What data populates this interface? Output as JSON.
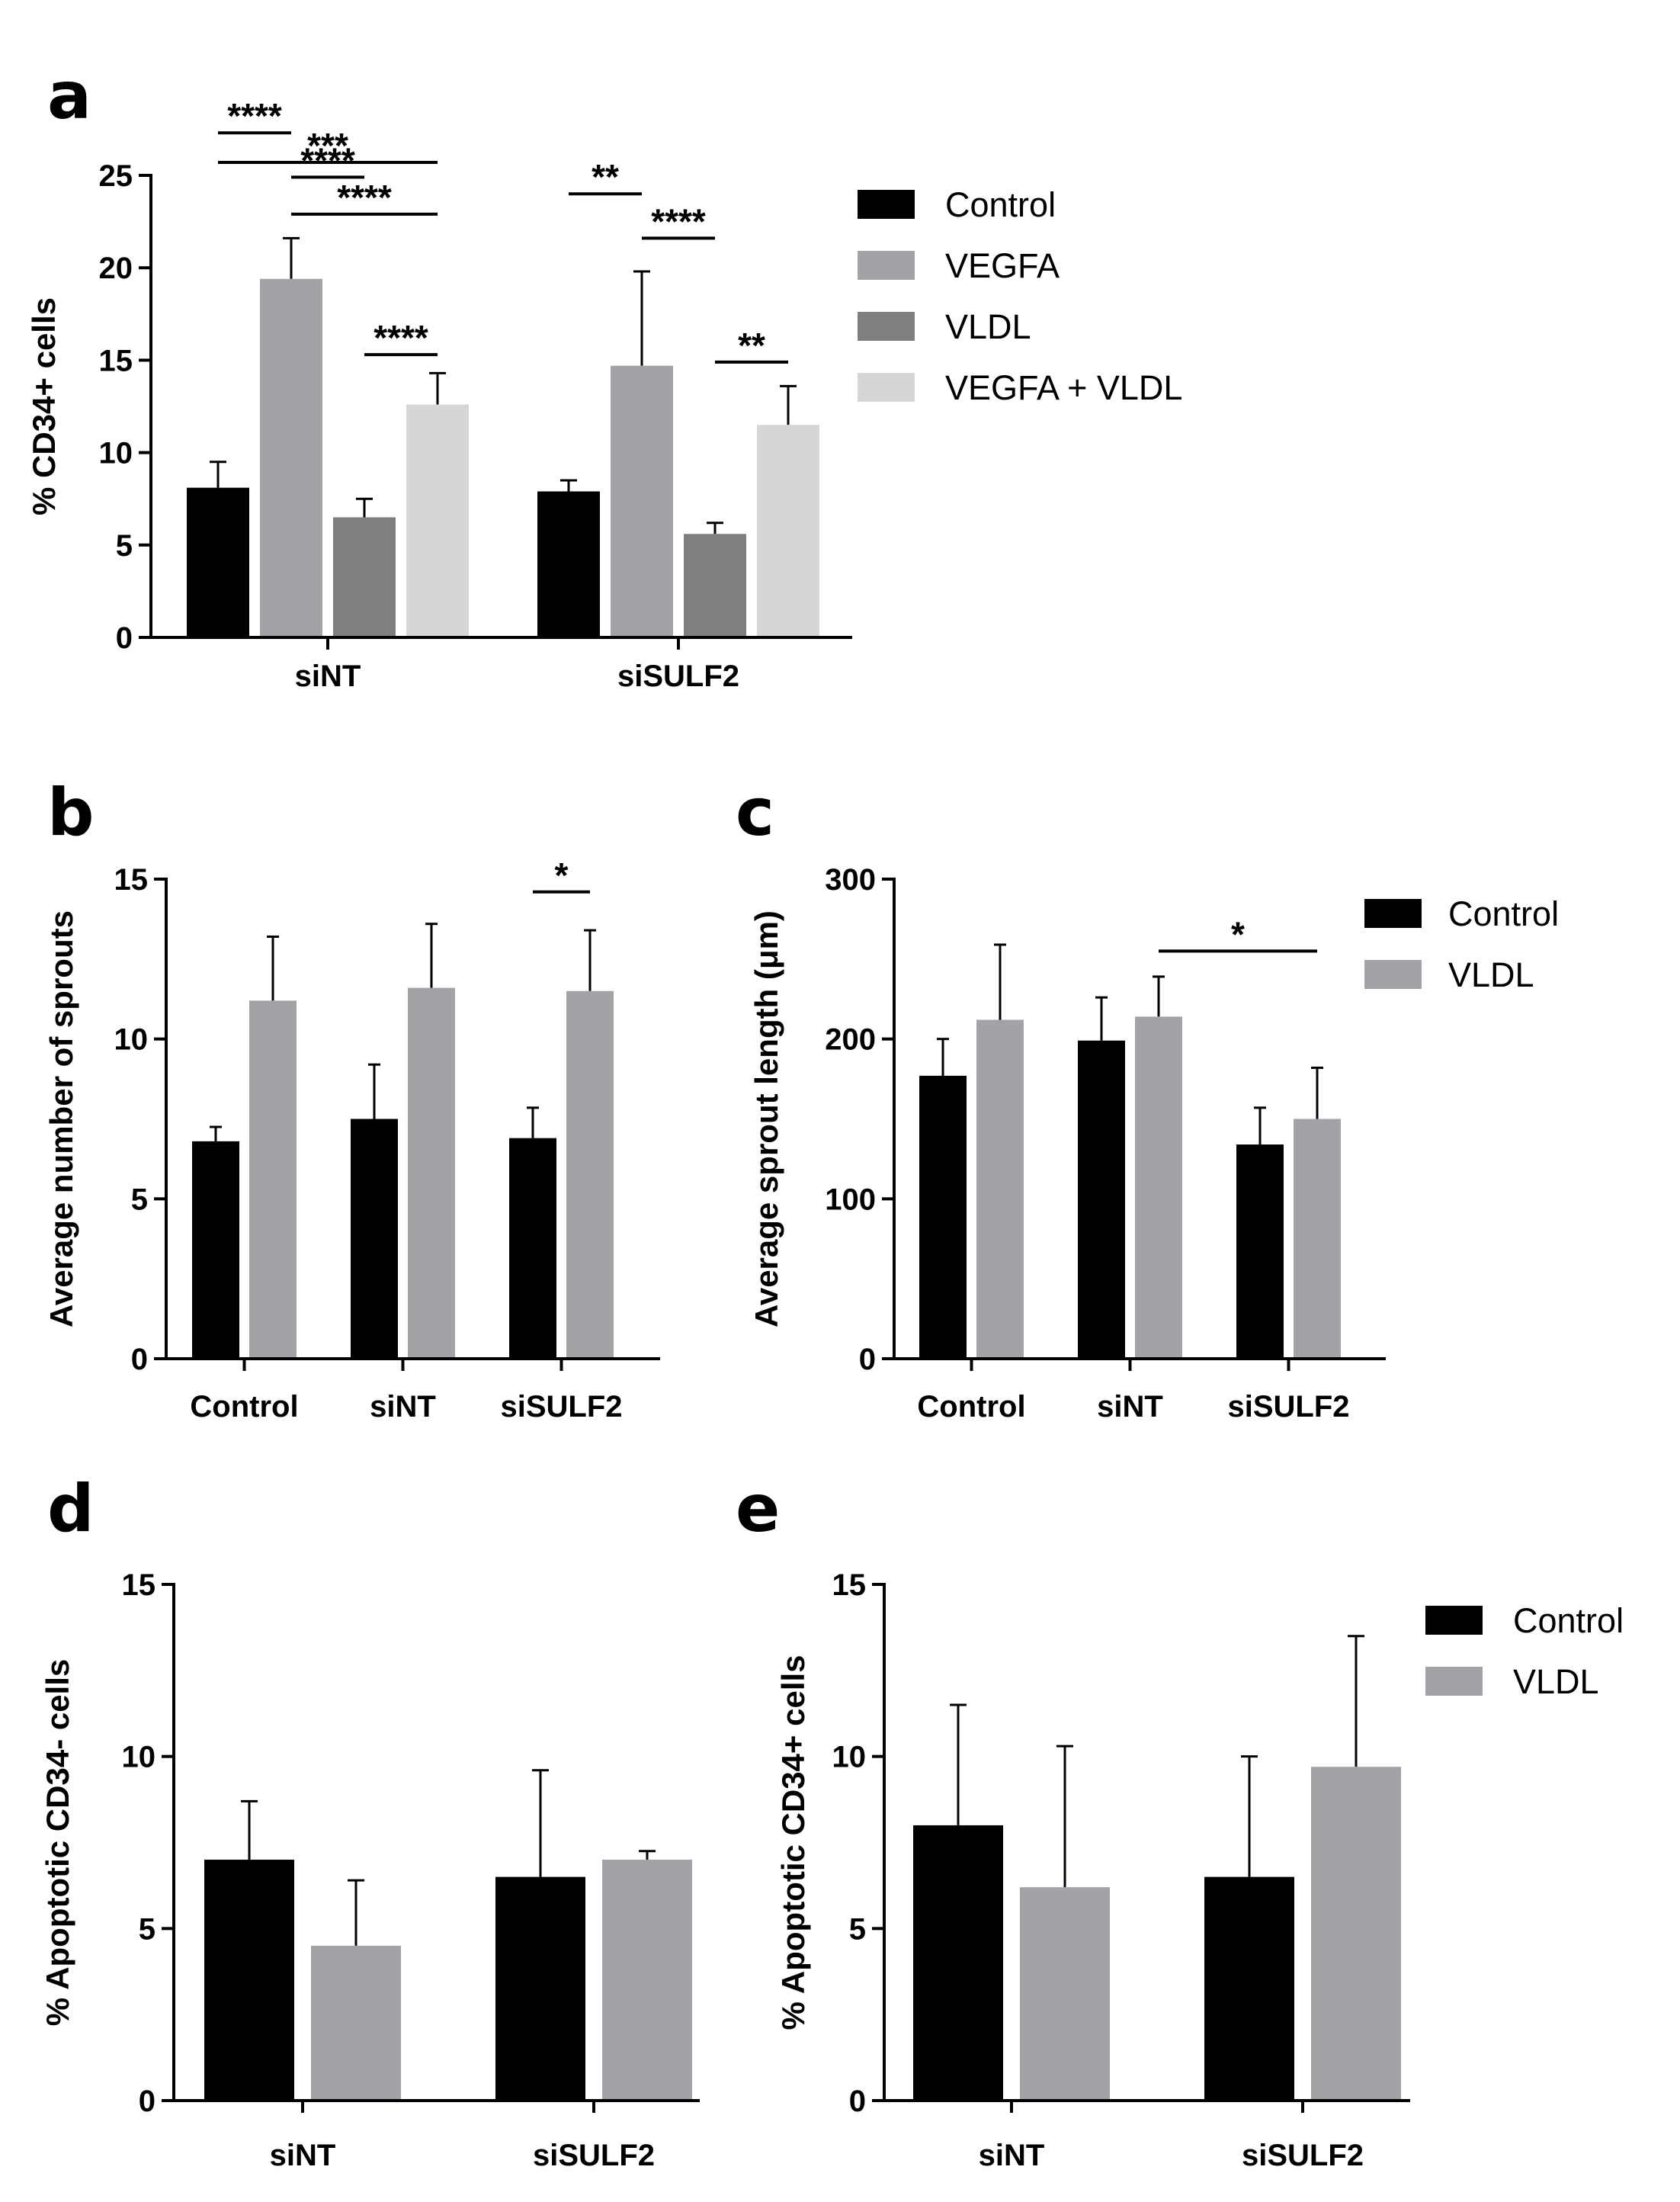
{
  "colors": {
    "control": "#000000",
    "vegfa": "#a3a3a7",
    "vldl": "#7f7f7f",
    "vegfa_vldl": "#d6d6d6",
    "vldl_two_group": "#a3a3a7",
    "axis": "#000000"
  },
  "chart_data": [
    {
      "panel": "a",
      "type": "bar",
      "categories": [
        "siNT",
        "siSULF2"
      ],
      "series": [
        {
          "name": "Control",
          "color_key": "control",
          "values": [
            8.1,
            7.9
          ],
          "errors": [
            1.4,
            0.6
          ]
        },
        {
          "name": "VEGFA",
          "color_key": "vegfa",
          "values": [
            19.4,
            14.7
          ],
          "errors": [
            2.2,
            5.1
          ]
        },
        {
          "name": "VLDL",
          "color_key": "vldl",
          "values": [
            6.5,
            5.6
          ],
          "errors": [
            1.0,
            0.6
          ]
        },
        {
          "name": "VEGFA + VLDL",
          "color_key": "vegfa_vldl",
          "values": [
            12.6,
            11.5
          ],
          "errors": [
            1.7,
            2.1
          ]
        }
      ],
      "ylabel": "% CD34+ cells",
      "ylim": [
        0,
        25
      ],
      "yticks": [
        0,
        5,
        10,
        15,
        20,
        25
      ],
      "legend": {
        "position": "right",
        "labels": [
          "Control",
          "VEGFA",
          "VLDL",
          "VEGFA + VLDL"
        ]
      },
      "significance": [
        {
          "category": 0,
          "from": 0,
          "to": 3,
          "label": "***",
          "level": 25.7
        },
        {
          "category": 0,
          "from": 0,
          "to": 1,
          "label": "****",
          "level": 27.3
        },
        {
          "category": 0,
          "from": 1,
          "to": 2,
          "label": "****",
          "level": 24.9
        },
        {
          "category": 0,
          "from": 1,
          "to": 3,
          "label": "****",
          "level": 22.9
        },
        {
          "category": 0,
          "from": 2,
          "to": 3,
          "label": "****",
          "level": 15.3
        },
        {
          "category": 1,
          "from": 0,
          "to": 1,
          "label": "**",
          "level": 24.0
        },
        {
          "category": 1,
          "from": 1,
          "to": 2,
          "label": "****",
          "level": 21.6
        },
        {
          "category": 1,
          "from": 2,
          "to": 3,
          "label": "**",
          "level": 14.9
        }
      ]
    },
    {
      "panel": "b",
      "type": "bar",
      "categories": [
        "Control",
        "siNT",
        "siSULF2"
      ],
      "series": [
        {
          "name": "Control",
          "color_key": "control",
          "values": [
            6.8,
            7.5,
            6.9
          ],
          "errors": [
            0.45,
            1.7,
            0.95
          ]
        },
        {
          "name": "VLDL",
          "color_key": "vldl_two_group",
          "values": [
            11.2,
            11.6,
            11.5
          ],
          "errors": [
            2.0,
            2.0,
            1.9
          ]
        }
      ],
      "ylabel": "Average number of sprouts",
      "ylim": [
        0,
        15
      ],
      "yticks": [
        0,
        5,
        10,
        15
      ],
      "significance": [
        {
          "category": 2,
          "from": 0,
          "to": 1,
          "label": "*",
          "level": 14.6
        }
      ]
    },
    {
      "panel": "c",
      "type": "bar",
      "categories": [
        "Control",
        "siNT",
        "siSULF2"
      ],
      "series": [
        {
          "name": "Control",
          "color_key": "control",
          "values": [
            177,
            199,
            134
          ],
          "errors": [
            23,
            27,
            23
          ]
        },
        {
          "name": "VLDL",
          "color_key": "vldl_two_group",
          "values": [
            212,
            214,
            150
          ],
          "errors": [
            47,
            25,
            32
          ]
        }
      ],
      "ylabel": "Average sprout length (μm)",
      "ylim": [
        0,
        300
      ],
      "yticks": [
        0,
        100,
        200,
        300
      ],
      "legend": {
        "position": "right",
        "labels": [
          "Control",
          "VLDL"
        ]
      },
      "significance": [
        {
          "span_from": {
            "category": 1,
            "series": 1
          },
          "span_to": {
            "category": 2,
            "series": 1
          },
          "label": "*",
          "level": 255
        }
      ]
    },
    {
      "panel": "d",
      "type": "bar",
      "categories": [
        "siNT",
        "siSULF2"
      ],
      "series": [
        {
          "name": "Control",
          "color_key": "control",
          "values": [
            7.0,
            6.5
          ],
          "errors": [
            1.7,
            3.1
          ]
        },
        {
          "name": "VLDL",
          "color_key": "vldl_two_group",
          "values": [
            4.5,
            7.0
          ],
          "errors": [
            1.9,
            0.25
          ]
        }
      ],
      "ylabel": "% Apoptotic CD34- cells",
      "ylim": [
        0,
        15
      ],
      "yticks": [
        0,
        5,
        10,
        15
      ]
    },
    {
      "panel": "e",
      "type": "bar",
      "categories": [
        "siNT",
        "siSULF2"
      ],
      "series": [
        {
          "name": "Control",
          "color_key": "control",
          "values": [
            8.0,
            6.5
          ],
          "errors": [
            3.5,
            3.5
          ]
        },
        {
          "name": "VLDL",
          "color_key": "vldl_two_group",
          "values": [
            6.2,
            9.7
          ],
          "errors": [
            4.1,
            3.8
          ]
        }
      ],
      "ylabel": "% Apoptotic CD34+ cells",
      "ylim": [
        0,
        15
      ],
      "yticks": [
        0,
        5,
        10,
        15
      ],
      "legend": {
        "position": "right",
        "labels": [
          "Control",
          "VLDL"
        ]
      }
    }
  ]
}
